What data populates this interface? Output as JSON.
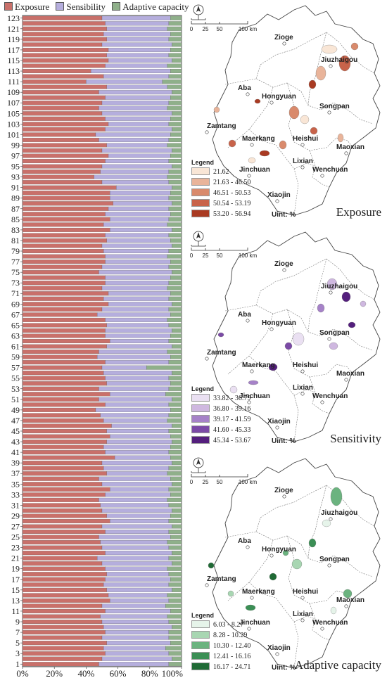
{
  "colors": {
    "exposure": "#c9706a",
    "sensibility": "#b5aedd",
    "adaptive": "#8fb08a"
  },
  "chart_data": {
    "type": "bar",
    "orientation": "horizontal",
    "stacked": "percent",
    "legend": [
      "Exposure",
      "Sensibility",
      "Adaptive capacity"
    ],
    "legend_position": "top",
    "y_tick_labels": [
      "1",
      "3",
      "5",
      "7",
      "9",
      "11",
      "13",
      "15",
      "17",
      "19",
      "21",
      "23",
      "25",
      "27",
      "29",
      "31",
      "33",
      "35",
      "37",
      "39",
      "41",
      "43",
      "45",
      "47",
      "49",
      "51",
      "53",
      "55",
      "57",
      "59",
      "61",
      "63",
      "65",
      "67",
      "69",
      "71",
      "73",
      "75",
      "77",
      "79",
      "81",
      "83",
      "85",
      "87",
      "89",
      "91",
      "93",
      "95",
      "97",
      "99",
      "101",
      "103",
      "105",
      "107",
      "109",
      "111",
      "113",
      "115",
      "117",
      "119",
      "121",
      "123"
    ],
    "x_tick_labels": [
      "0%",
      "20%",
      "40%",
      "60%",
      "80%",
      "100%"
    ],
    "xlim": [
      0,
      100
    ],
    "exposure_pct": [
      48,
      50,
      52,
      51,
      53,
      50,
      52,
      51,
      50,
      49,
      52,
      50,
      55,
      54,
      53,
      51,
      52,
      53,
      52,
      50,
      47,
      52,
      50,
      49,
      48,
      52,
      50,
      55,
      53,
      50,
      49,
      48,
      52,
      55,
      50,
      48,
      53,
      51,
      50,
      58,
      52,
      51,
      53,
      55,
      53,
      56,
      51,
      49,
      46,
      52,
      48,
      55,
      48,
      53,
      52,
      51,
      50,
      52,
      47,
      48,
      53,
      55,
      52,
      52,
      53,
      52,
      47,
      50,
      54,
      51,
      54,
      50,
      52,
      52,
      48,
      50,
      52,
      52,
      51,
      50,
      53,
      52,
      55,
      51,
      55,
      52,
      54,
      57,
      55,
      55,
      59,
      50,
      45,
      49,
      50,
      52,
      54,
      50,
      53,
      48,
      46,
      52,
      54,
      52,
      50,
      48,
      50,
      52,
      48,
      53,
      40,
      51,
      43,
      52,
      54,
      53,
      54,
      50,
      53,
      51,
      53,
      52,
      50
    ],
    "adaptive_pct": [
      8,
      6,
      8,
      10,
      7,
      8,
      8,
      6,
      8,
      9,
      7,
      10,
      8,
      9,
      6,
      8,
      7,
      8,
      9,
      6,
      8,
      6,
      8,
      9,
      7,
      8,
      6,
      8,
      7,
      6,
      8,
      9,
      7,
      8,
      6,
      7,
      9,
      8,
      6,
      7,
      8,
      7,
      6,
      7,
      8,
      6,
      9,
      8,
      7,
      8,
      6,
      10,
      8,
      7,
      8,
      6,
      22,
      8,
      7,
      9,
      6,
      8,
      7,
      6,
      8,
      9,
      7,
      8,
      6,
      8,
      7,
      9,
      8,
      7,
      6,
      8,
      7,
      9,
      8,
      6,
      7,
      8,
      6,
      9,
      8,
      7,
      8,
      6,
      8,
      7,
      6,
      8,
      9,
      8,
      6,
      8,
      7,
      6,
      9,
      8,
      7,
      6,
      8,
      7,
      6,
      9,
      8,
      7,
      6,
      9,
      12,
      8,
      7,
      9,
      6,
      8,
      7,
      6,
      8,
      7,
      9,
      8,
      7
    ]
  },
  "maps": [
    {
      "title": "Exposure",
      "legend_title": "Legend",
      "unit": "Uint: %",
      "classes": [
        "21.62",
        "21.63 - 46.50",
        "46.51 - 50.53",
        "50.54 - 53.19",
        "53.20 - 56.94"
      ],
      "colors": [
        "#f9e6d6",
        "#e9b49a",
        "#d98a6c",
        "#c8634a",
        "#a93a22"
      ],
      "show_scale": true
    },
    {
      "title": "Sensitivity",
      "legend_title": "Legend",
      "unit": "Uint: %",
      "classes": [
        "33.82 - 36.79",
        "36.80 - 39.16",
        "39.17 - 41.59",
        "41.60 - 45.33",
        "45.34 - 53.67"
      ],
      "colors": [
        "#eae0f2",
        "#cfb8e0",
        "#a682c8",
        "#7b4aa6",
        "#541f7d"
      ],
      "show_scale": true
    },
    {
      "title": "Adaptive capacity",
      "legend_title": "Legend",
      "unit": "Uint: %",
      "classes": [
        "6.03 - 8.27",
        "8.28 - 10.29",
        "10.30 - 12.40",
        "12.41 - 16.16",
        "16.17 - 24.71"
      ],
      "colors": [
        "#e6f4ea",
        "#a8d6b2",
        "#6bb37f",
        "#3b8f55",
        "#1f6a35"
      ],
      "show_scale": true
    }
  ],
  "map_labels": [
    "Zioge",
    "Jiuzhaigou",
    "Aba",
    "Hongyuan",
    "Songpan",
    "Zamtang",
    "Maerkang",
    "Heishui",
    "Maoxian",
    "Lixian",
    "Jinchuan",
    "Wenchuan",
    "Xiaojin"
  ],
  "scale_labels": [
    "0",
    "25",
    "50",
    "100 km"
  ]
}
